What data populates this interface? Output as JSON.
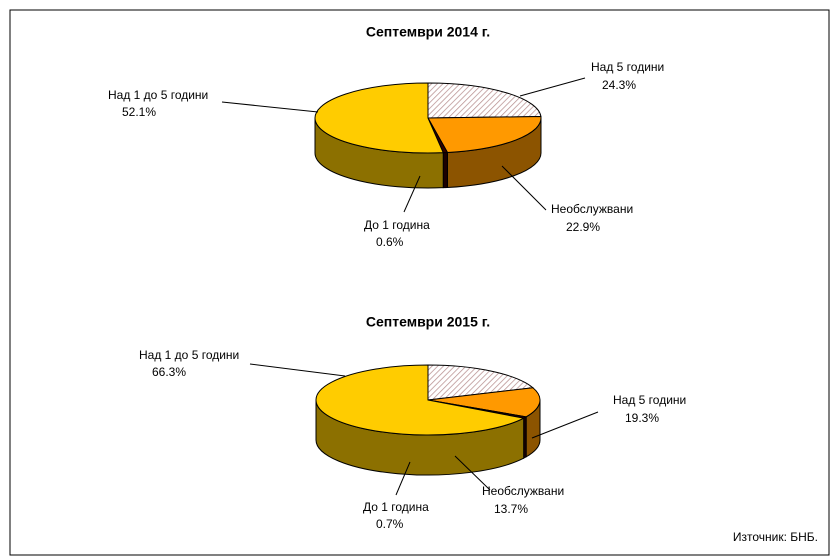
{
  "chart_data": [
    {
      "type": "pie3d",
      "title": "Септември 2014 г.",
      "categories": [
        "Над 5 години",
        "Необслужвани",
        "До 1 година",
        "Над 1 до 5 години"
      ],
      "values": [
        24.3,
        22.9,
        0.6,
        52.1
      ],
      "value_labels": [
        "24.3%",
        "22.9%",
        "0.6%",
        "52.1%"
      ],
      "colors": [
        "#b89090",
        "#ff9900",
        "#330000",
        "#ffcc00"
      ],
      "hatched": [
        true,
        false,
        false,
        false
      ]
    },
    {
      "type": "pie3d",
      "title": "Септември 2015 г.",
      "categories": [
        "Над 5 години",
        "Необслужвани",
        "До 1 година",
        "Над 1 до 5 години"
      ],
      "values": [
        19.3,
        13.7,
        0.7,
        66.3
      ],
      "value_labels": [
        "19.3%",
        "13.7%",
        "0.7%",
        "66.3%"
      ],
      "colors": [
        "#b89090",
        "#ff9900",
        "#330000",
        "#ffcc00"
      ],
      "hatched": [
        true,
        false,
        false,
        false
      ]
    }
  ],
  "source": "Източник: БНБ."
}
